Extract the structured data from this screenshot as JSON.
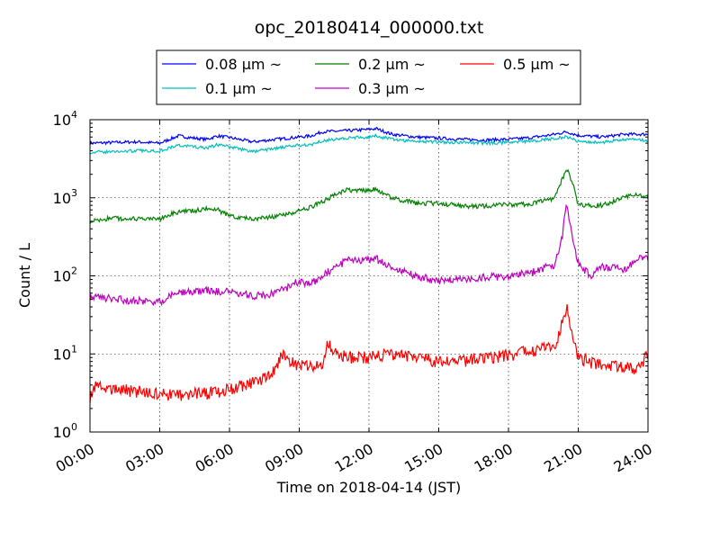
{
  "chart_data": {
    "type": "line",
    "title": "opc_20180414_000000.txt",
    "xlabel": "Time on 2018-04-14 (JST)",
    "ylabel": "Count / L",
    "x_ticks": [
      "00:00",
      "03:00",
      "06:00",
      "09:00",
      "12:00",
      "15:00",
      "18:00",
      "21:00",
      "24:00"
    ],
    "x_range_hours": [
      0,
      24
    ],
    "y_scale": "log",
    "ylim": [
      1,
      10000
    ],
    "y_ticks": [
      {
        "base": "10",
        "exp": "0"
      },
      {
        "base": "10",
        "exp": "1"
      },
      {
        "base": "10",
        "exp": "2"
      },
      {
        "base": "10",
        "exp": "3"
      },
      {
        "base": "10",
        "exp": "4"
      }
    ],
    "grid": true,
    "legend_position": "top (above axes)",
    "legend_unit": "μm",
    "legend_suffix": "~",
    "series": [
      {
        "name": "0.08",
        "color": "#0000ff",
        "points": [
          [
            0,
            5000
          ],
          [
            1,
            5100
          ],
          [
            2,
            5200
          ],
          [
            3,
            5000
          ],
          [
            3.8,
            6200
          ],
          [
            4.5,
            5800
          ],
          [
            5,
            5600
          ],
          [
            5.5,
            6200
          ],
          [
            6,
            5900
          ],
          [
            7,
            5200
          ],
          [
            8,
            5600
          ],
          [
            9,
            6000
          ],
          [
            9.5,
            6200
          ],
          [
            10,
            7000
          ],
          [
            11,
            7200
          ],
          [
            12,
            7500
          ],
          [
            12.3,
            7700
          ],
          [
            13,
            6500
          ],
          [
            14,
            6000
          ],
          [
            15,
            5800
          ],
          [
            16,
            5600
          ],
          [
            17,
            5500
          ],
          [
            18,
            5600
          ],
          [
            19,
            5900
          ],
          [
            20,
            6500
          ],
          [
            20.5,
            7000
          ],
          [
            21,
            6300
          ],
          [
            22,
            6000
          ],
          [
            23,
            6500
          ],
          [
            24,
            6500
          ]
        ]
      },
      {
        "name": "0.1",
        "color": "#00bfbf",
        "points": [
          [
            0,
            3800
          ],
          [
            1,
            3900
          ],
          [
            2,
            4000
          ],
          [
            3,
            4000
          ],
          [
            3.8,
            4700
          ],
          [
            4.5,
            4500
          ],
          [
            5,
            4300
          ],
          [
            5.5,
            4800
          ],
          [
            6,
            4500
          ],
          [
            7,
            3900
          ],
          [
            8,
            4300
          ],
          [
            9,
            4700
          ],
          [
            9.5,
            4800
          ],
          [
            10,
            5400
          ],
          [
            11,
            5800
          ],
          [
            12,
            6000
          ],
          [
            12.3,
            6200
          ],
          [
            13,
            5600
          ],
          [
            14,
            5300
          ],
          [
            15,
            5200
          ],
          [
            16,
            5100
          ],
          [
            17,
            5000
          ],
          [
            18,
            5100
          ],
          [
            19,
            5300
          ],
          [
            20,
            5800
          ],
          [
            20.5,
            6000
          ],
          [
            21,
            5300
          ],
          [
            22,
            5100
          ],
          [
            23,
            5600
          ],
          [
            24,
            5400
          ]
        ]
      },
      {
        "name": "0.2",
        "color": "#008000",
        "points": [
          [
            0,
            500
          ],
          [
            1,
            550
          ],
          [
            2,
            530
          ],
          [
            3,
            530
          ],
          [
            3.6,
            650
          ],
          [
            4.5,
            680
          ],
          [
            5,
            720
          ],
          [
            5.5,
            700
          ],
          [
            6,
            580
          ],
          [
            7,
            540
          ],
          [
            8,
            570
          ],
          [
            9,
            680
          ],
          [
            9.5,
            750
          ],
          [
            10,
            900
          ],
          [
            11,
            1250
          ],
          [
            12,
            1250
          ],
          [
            12.3,
            1300
          ],
          [
            13,
            1000
          ],
          [
            14,
            850
          ],
          [
            15,
            850
          ],
          [
            16,
            780
          ],
          [
            17,
            780
          ],
          [
            18,
            820
          ],
          [
            19,
            830
          ],
          [
            20,
            1000
          ],
          [
            20.5,
            2400
          ],
          [
            20.8,
            1400
          ],
          [
            21,
            800
          ],
          [
            22,
            800
          ],
          [
            23,
            1000
          ],
          [
            23.5,
            1150
          ],
          [
            24,
            1000
          ]
        ]
      },
      {
        "name": "0.3",
        "color": "#bf00bf",
        "points": [
          [
            0,
            55
          ],
          [
            1,
            50
          ],
          [
            2,
            48
          ],
          [
            3,
            46
          ],
          [
            3.6,
            60
          ],
          [
            4.5,
            62
          ],
          [
            5,
            65
          ],
          [
            6,
            62
          ],
          [
            7,
            55
          ],
          [
            8,
            60
          ],
          [
            9,
            85
          ],
          [
            9.5,
            80
          ],
          [
            10,
            100
          ],
          [
            11,
            155
          ],
          [
            12,
            160
          ],
          [
            12.3,
            165
          ],
          [
            13,
            130
          ],
          [
            14,
            100
          ],
          [
            15,
            85
          ],
          [
            16,
            90
          ],
          [
            17,
            95
          ],
          [
            18,
            100
          ],
          [
            19,
            110
          ],
          [
            20,
            140
          ],
          [
            20.3,
            300
          ],
          [
            20.5,
            850
          ],
          [
            20.8,
            250
          ],
          [
            21,
            150
          ],
          [
            21.5,
            100
          ],
          [
            22,
            130
          ],
          [
            23,
            120
          ],
          [
            23.5,
            160
          ],
          [
            24,
            170
          ]
        ]
      },
      {
        "name": "0.5",
        "color": "#ff0000",
        "points": [
          [
            0,
            2.8
          ],
          [
            0.3,
            4
          ],
          [
            1,
            3.5
          ],
          [
            2,
            3.3
          ],
          [
            3,
            3.0
          ],
          [
            4,
            3.0
          ],
          [
            5,
            3.1
          ],
          [
            6,
            3.5
          ],
          [
            7,
            4.2
          ],
          [
            8,
            6
          ],
          [
            8.2,
            10
          ],
          [
            9,
            7
          ],
          [
            10,
            7
          ],
          [
            10.2,
            13
          ],
          [
            11,
            9
          ],
          [
            12,
            9
          ],
          [
            13,
            10
          ],
          [
            14,
            9
          ],
          [
            15,
            8
          ],
          [
            16,
            8
          ],
          [
            17,
            9
          ],
          [
            18,
            9.5
          ],
          [
            19,
            11
          ],
          [
            20,
            12
          ],
          [
            20.5,
            42
          ],
          [
            20.8,
            14
          ],
          [
            21,
            9
          ],
          [
            22,
            7
          ],
          [
            23,
            7
          ],
          [
            23.5,
            6
          ],
          [
            24,
            10
          ]
        ]
      }
    ]
  }
}
